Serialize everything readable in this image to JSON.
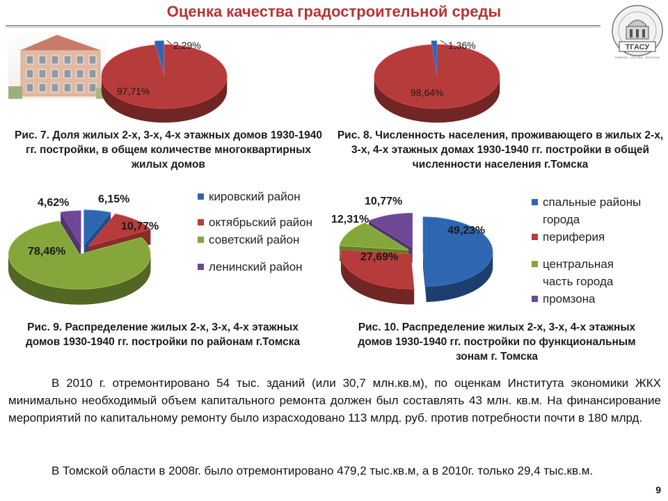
{
  "header": {
    "title": "Оценка качества градостроительной среды",
    "logo_text": "ТГАСУ",
    "logo_motto": "FIRMITAS · UTILITAS · VENUSTAS"
  },
  "colors": {
    "red": "#b63b3b",
    "blue": "#2f66b0",
    "green": "#84a63a",
    "purple": "#6e4795",
    "title": "#b93232"
  },
  "captions": {
    "fig7": "Рис. 7. Доля жилых 2-х, 3-х, 4-х этажных домов 1930-1940 гг. постройки, в общем количестве многоквартирных жилых домов",
    "fig8": "Рис. 8. Численность населения, проживающего в жилых 2-х, 3-х, 4-х этажных домах 1930-1940 гг. постройки в общей численности населения г.Томска",
    "fig9": "Рис. 9. Распределение жилых 2-х, 3-х, 4-х этажных домов 1930-1940 гг. постройки по районам г.Томска",
    "fig10": "Рис. 10. Распределение жилых 2-х, 3-х, 4-х этажных домов 1930-1940 гг. постройки по функциональным зонам г. Томска"
  },
  "chart_data": [
    {
      "id": "fig7",
      "type": "pie",
      "title": "",
      "slices": [
        {
          "label": "97,71%",
          "value": 97.71,
          "color": "#b63b3b"
        },
        {
          "label": "2,29%",
          "value": 2.29,
          "color": "#2f66b0"
        }
      ]
    },
    {
      "id": "fig8",
      "type": "pie",
      "title": "",
      "slices": [
        {
          "label": "98,64%",
          "value": 98.64,
          "color": "#b63b3b"
        },
        {
          "label": "1,36%",
          "value": 1.36,
          "color": "#2f66b0"
        }
      ]
    },
    {
      "id": "fig9",
      "type": "pie",
      "title": "",
      "legend": [
        "кировский район",
        "октябрьский район",
        "советский район",
        "ленинский район"
      ],
      "slices": [
        {
          "label": "6,15%",
          "value": 6.15,
          "color": "#2f66b0",
          "name": "кировский район"
        },
        {
          "label": "10,77%",
          "value": 10.77,
          "color": "#b63b3b",
          "name": "октябрьский район"
        },
        {
          "label": "78,46%",
          "value": 78.46,
          "color": "#84a63a",
          "name": "советский район"
        },
        {
          "label": "4,62%",
          "value": 4.62,
          "color": "#6e4795",
          "name": "ленинский район"
        }
      ]
    },
    {
      "id": "fig10",
      "type": "pie",
      "title": "",
      "legend": [
        "спальные районы города",
        "периферия",
        "центральная часть города",
        "промзона"
      ],
      "slices": [
        {
          "label": "49,23%",
          "value": 49.23,
          "color": "#2f66b0",
          "name": "спальные районы города"
        },
        {
          "label": "27,69%",
          "value": 27.69,
          "color": "#b63b3b",
          "name": "периферия"
        },
        {
          "label": "12,31%",
          "value": 12.31,
          "color": "#84a63a",
          "name": "центральная часть города"
        },
        {
          "label": "10,77%",
          "value": 10.77,
          "color": "#6e4795",
          "name": "промзона"
        }
      ]
    }
  ],
  "legends": {
    "fig9": [
      {
        "text": "кировский район",
        "color": "#2f66b0"
      },
      {
        "text": "октябрьский район",
        "color": "#b63b3b"
      },
      {
        "text": "советский район",
        "color": "#84a63a"
      },
      {
        "text": "ленинский район",
        "color": "#6e4795"
      }
    ],
    "fig10": [
      {
        "text": "спальные районы города",
        "color": "#2f66b0"
      },
      {
        "text": "периферия",
        "color": "#b63b3b"
      },
      {
        "text": "центральная часть города",
        "color": "#84a63a"
      },
      {
        "text": "промзона",
        "color": "#6e4795"
      }
    ]
  },
  "body": {
    "p1": "В 2010 г. отремонтировано 54 тыс. зданий (или 30,7 млн.кв.м), по оценкам Института экономики ЖКХ минимально необходимый объем капитального ремонта должен был составлять 43 млн. кв.м. На финансирование мероприятий по капитальному ремонту было израсходовано 113 млрд. руб. против потребности почти в 180 млрд.",
    "p2": "В Томской области в 2008г. было отремонтировано 479,2 тыс.кв.м, а в 2010г. только 29,4 тыс.кв.м."
  },
  "page_number": "9"
}
